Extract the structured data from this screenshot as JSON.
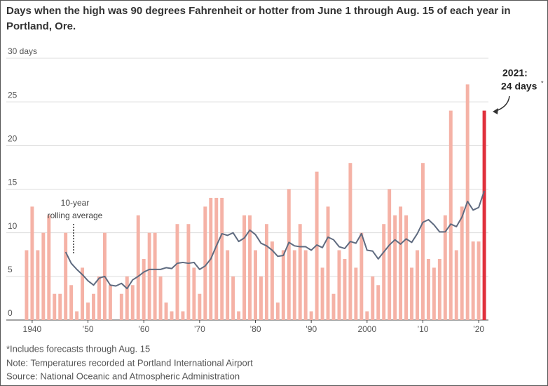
{
  "chart_data": {
    "type": "bar",
    "title": "Days when the high was 90 degrees Fahrenheit or hotter from June 1 through Aug. 15 of each year in Portland, Ore.",
    "x": [
      1939,
      1940,
      1941,
      1942,
      1943,
      1944,
      1945,
      1946,
      1947,
      1948,
      1949,
      1950,
      1951,
      1952,
      1953,
      1954,
      1955,
      1956,
      1957,
      1958,
      1959,
      1960,
      1961,
      1962,
      1963,
      1964,
      1965,
      1966,
      1967,
      1968,
      1969,
      1970,
      1971,
      1972,
      1973,
      1974,
      1975,
      1976,
      1977,
      1978,
      1979,
      1980,
      1981,
      1982,
      1983,
      1984,
      1985,
      1986,
      1987,
      1988,
      1989,
      1990,
      1991,
      1992,
      1993,
      1994,
      1995,
      1996,
      1997,
      1998,
      1999,
      2000,
      2001,
      2002,
      2003,
      2004,
      2005,
      2006,
      2007,
      2008,
      2009,
      2010,
      2011,
      2012,
      2013,
      2014,
      2015,
      2016,
      2017,
      2018,
      2019,
      2020,
      2021
    ],
    "series": [
      {
        "type": "bar",
        "color": "#f5b2a6",
        "values": [
          8,
          13,
          8,
          10,
          12,
          3,
          3,
          10,
          4,
          1,
          6,
          2,
          3,
          5,
          10,
          4,
          0,
          3,
          5,
          4,
          12,
          7,
          10,
          10,
          5,
          2,
          1,
          11,
          1,
          11,
          6,
          3,
          13,
          14,
          14,
          14,
          8,
          5,
          1,
          12,
          12,
          8,
          5,
          11,
          9,
          2,
          8,
          15,
          8,
          11,
          8,
          1,
          17,
          6,
          13,
          3,
          8,
          7,
          18,
          6,
          10,
          1,
          5,
          4,
          11,
          15,
          12,
          13,
          12,
          6,
          8,
          18,
          7,
          6,
          7,
          12,
          24,
          8,
          13,
          27,
          9,
          9,
          24
        ]
      },
      {
        "type": "line",
        "color": "#5f6b80",
        "values": [
          null,
          null,
          null,
          null,
          null,
          null,
          null,
          7.8,
          6.5,
          5.8,
          5.2,
          4.5,
          4.0,
          4.8,
          5.0,
          4.0,
          3.9,
          4.2,
          3.6,
          4.6,
          5.0,
          5.5,
          5.8,
          5.8,
          5.8,
          6.0,
          5.9,
          6.5,
          6.6,
          6.5,
          6.6,
          5.8,
          6.2,
          7.0,
          8.5,
          9.9,
          9.7,
          10.0,
          9.0,
          9.4,
          10.3,
          9.8,
          8.8,
          8.5,
          8.0,
          7.3,
          7.4,
          8.9,
          8.5,
          8.4,
          8.4,
          8.0,
          8.6,
          8.3,
          9.5,
          9.2,
          8.4,
          8.2,
          9.0,
          8.8,
          9.9,
          8.0,
          7.9,
          7.0,
          7.8,
          8.6,
          9.2,
          8.7,
          9.3,
          8.9,
          9.9,
          11.2,
          11.5,
          10.9,
          10.1,
          10.1,
          11.0,
          10.7,
          11.8,
          13.6,
          12.6,
          12.9,
          14.8
        ]
      }
    ],
    "highlight": {
      "x": 2021,
      "color": "#e0303c"
    },
    "xlim": [
      1937,
      2023
    ],
    "xticks": [
      {
        "value": 1940,
        "label": "1940"
      },
      {
        "value": 1950,
        "label": "’50"
      },
      {
        "value": 1960,
        "label": "’60"
      },
      {
        "value": 1970,
        "label": "’70"
      },
      {
        "value": 1980,
        "label": "’80"
      },
      {
        "value": 1990,
        "label": "’90"
      },
      2000,
      {
        "value": 2010,
        "label": "’10"
      },
      {
        "value": 2020,
        "label": "’20"
      }
    ],
    "ylim": [
      0,
      30
    ],
    "yticks": [
      0,
      5,
      10,
      15,
      20,
      25,
      {
        "value": 30,
        "label": "30 days"
      }
    ],
    "grid": true,
    "annotations": {
      "rolling": [
        "10-year",
        "rolling average"
      ],
      "latest": [
        "2021:",
        "24 days",
        "*"
      ]
    },
    "footnotes": [
      "*Includes forecasts through Aug. 15",
      "Note: Temperatures recorded at Portland International Airport",
      "Source: National Oceanic and Atmospheric Administration"
    ]
  }
}
